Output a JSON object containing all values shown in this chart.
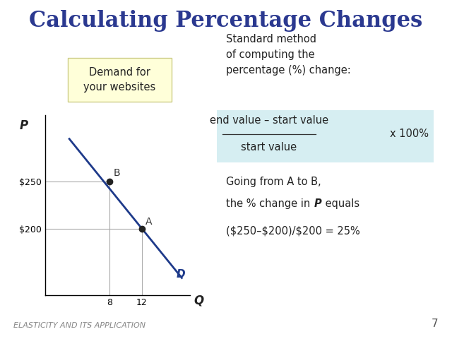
{
  "title": "Calculating Percentage Changes",
  "title_color": "#2B3990",
  "title_fontsize": 22,
  "bg_color": "#FFFFFF",
  "footer_text": "ELASTICITY AND ITS APPLICATION",
  "footer_page": "7",
  "demand_box_text": "Demand for\nyour websites",
  "demand_box_bg": "#FFFFD9",
  "demand_box_border": "#CCCC88",
  "standard_method_text": "Standard method\nof computing the\npercentage (%) change:",
  "formula_box_bg": "#D6EEF2",
  "formula_numerator": "end value – start value",
  "formula_denominator": "start value",
  "formula_x100": "x 100%",
  "going_from_line1": "Going from A to B,",
  "going_from_line2_pre": "the % change in ",
  "going_from_line2_bold": "P",
  "going_from_line2_post": " equals",
  "calc_text": "($250–$200)/$200 = 25%",
  "demand_line_x": [
    3,
    17
  ],
  "demand_line_y": [
    295,
    148
  ],
  "demand_label": "D",
  "demand_line_color": "#1E3A8A",
  "axis_label_P": "P",
  "axis_label_Q": "Q",
  "ytick_vals": [
    200,
    250
  ],
  "ytick_labels": [
    "$200",
    "$250"
  ],
  "xtick_vals": [
    8,
    12
  ],
  "xlim": [
    0,
    18
  ],
  "ylim": [
    130,
    320
  ]
}
